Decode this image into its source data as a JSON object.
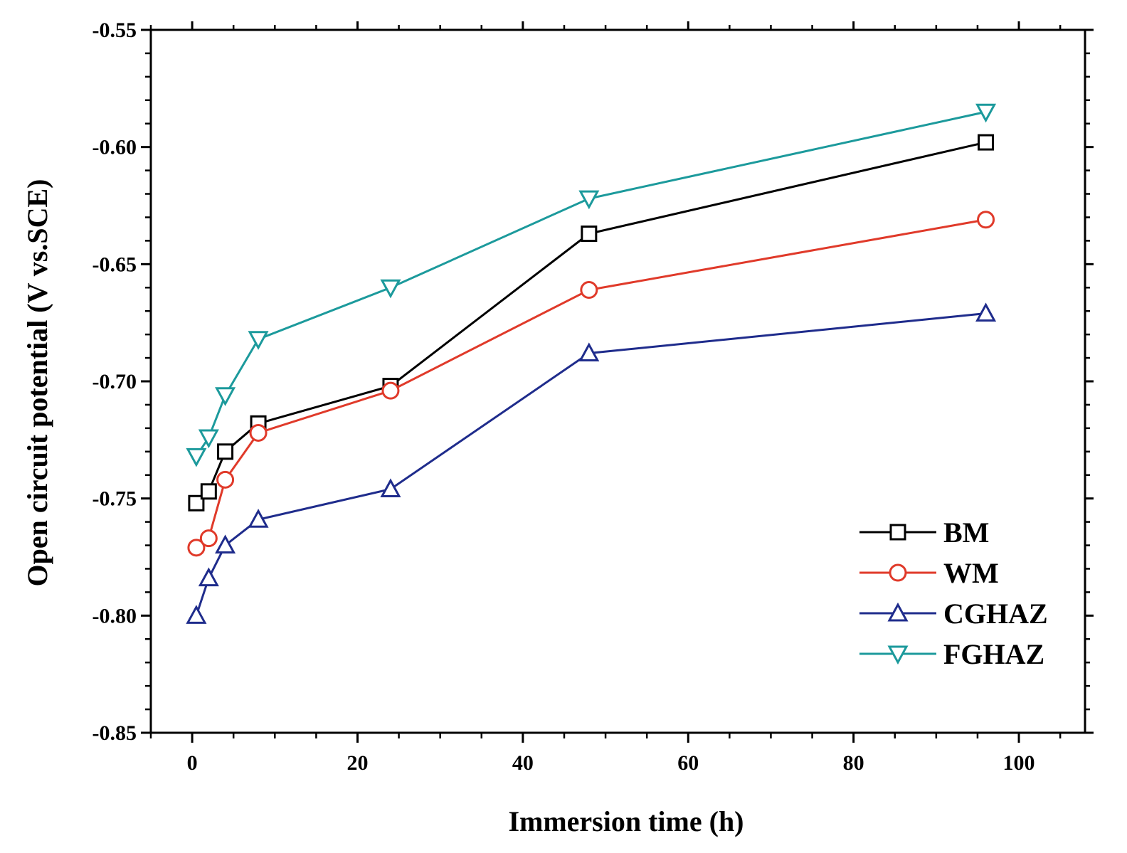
{
  "chart_data": {
    "type": "line",
    "title": "",
    "xlabel": "Immersion time (h)",
    "ylabel": "Open circuit potential (V vs.SCE)",
    "xlim": [
      -5,
      108
    ],
    "ylim": [
      -0.85,
      -0.55
    ],
    "xticks": [
      0,
      20,
      40,
      60,
      80,
      100
    ],
    "xtick_labels": [
      "0",
      "20",
      "40",
      "60",
      "80",
      "100"
    ],
    "yticks": [
      -0.85,
      -0.8,
      -0.75,
      -0.7,
      -0.65,
      -0.6,
      -0.55
    ],
    "ytick_labels": [
      "-0.85",
      "-0.80",
      "-0.75",
      "-0.70",
      "-0.65",
      "-0.60",
      "-0.55"
    ],
    "grid": false,
    "legend_position": "bottom-right",
    "series": [
      {
        "name": "BM",
        "marker": "square",
        "color": "#000000",
        "x": [
          0.5,
          2,
          4,
          8,
          24,
          48,
          96
        ],
        "y": [
          -0.752,
          -0.747,
          -0.73,
          -0.718,
          -0.702,
          -0.637,
          -0.598
        ]
      },
      {
        "name": "WM",
        "marker": "circle",
        "color": "#e03a2a",
        "x": [
          0.5,
          2,
          4,
          8,
          24,
          48,
          96
        ],
        "y": [
          -0.771,
          -0.767,
          -0.742,
          -0.722,
          -0.704,
          -0.661,
          -0.631
        ]
      },
      {
        "name": "CGHAZ",
        "marker": "triangle-up",
        "color": "#1f2c8c",
        "x": [
          0.5,
          2,
          4,
          8,
          24,
          48,
          96
        ],
        "y": [
          -0.8,
          -0.784,
          -0.77,
          -0.759,
          -0.746,
          -0.688,
          -0.671
        ]
      },
      {
        "name": "FGHAZ",
        "marker": "triangle-down",
        "color": "#1c9a9c",
        "x": [
          0.5,
          2,
          4,
          8,
          24,
          48,
          96
        ],
        "y": [
          -0.732,
          -0.724,
          -0.706,
          -0.682,
          -0.66,
          -0.622,
          -0.585
        ]
      }
    ]
  }
}
